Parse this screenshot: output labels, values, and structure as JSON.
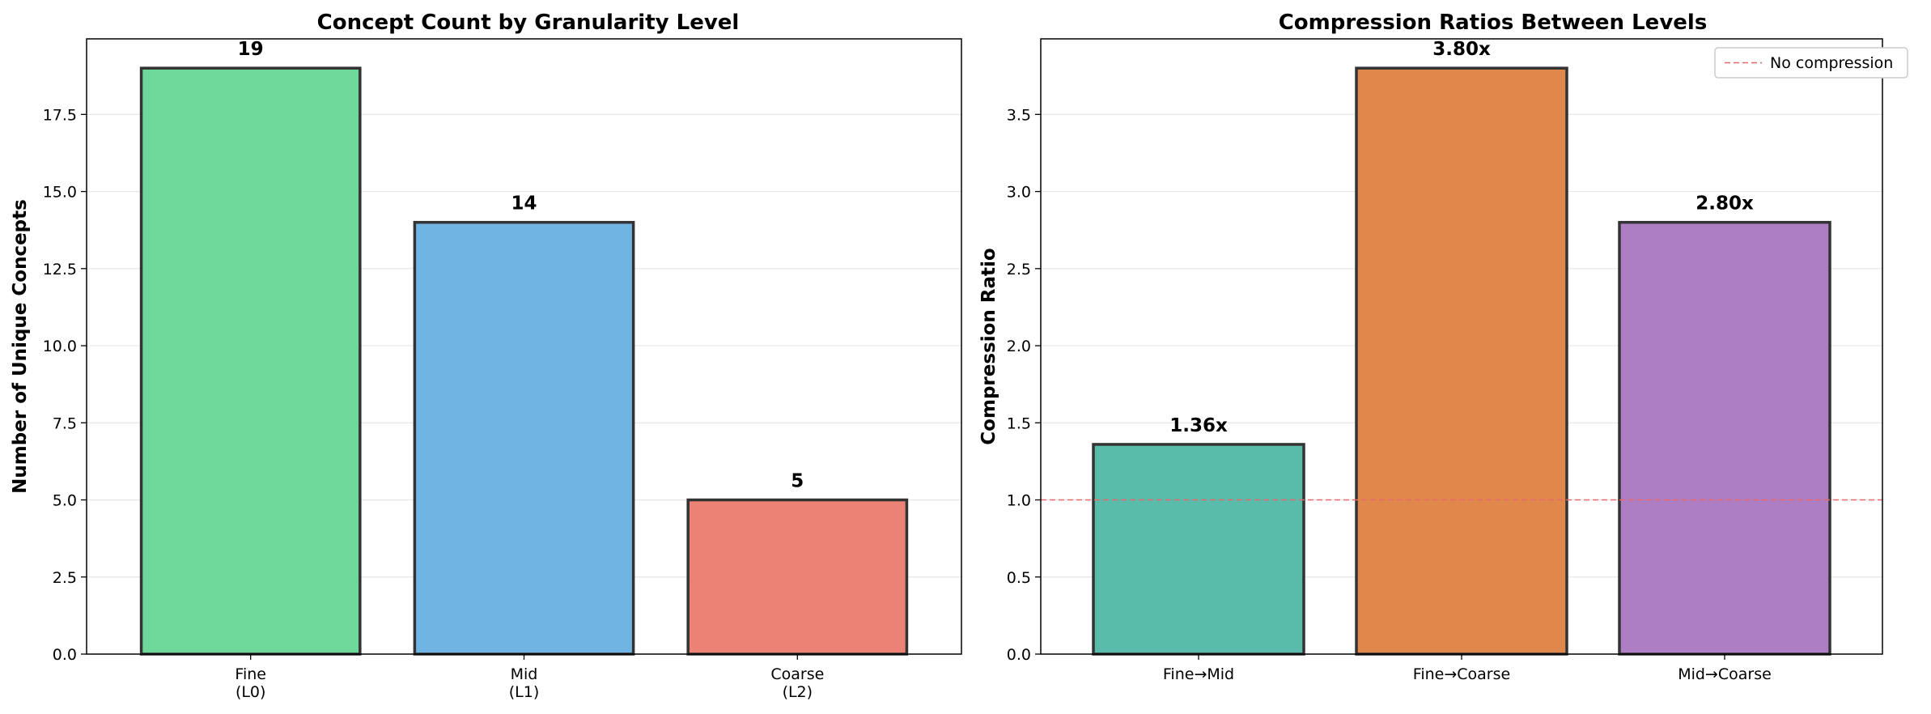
{
  "chart_data": [
    {
      "type": "bar",
      "title": "Concept Count by Granularity Level",
      "xlabel": "",
      "ylabel": "Number of Unique Concepts",
      "categories": [
        "Fine\n(L0)",
        "Mid\n(L1)",
        "Coarse\n(L2)"
      ],
      "values": [
        19,
        14,
        5
      ],
      "value_labels": [
        "19",
        "14",
        "5"
      ],
      "colors": [
        "#6dd899",
        "#70b4e4",
        "#ec8276"
      ],
      "ylim": [
        0,
        19.95
      ],
      "yticks": [
        "0.0",
        "2.5",
        "5.0",
        "7.5",
        "10.0",
        "12.5",
        "15.0",
        "17.5"
      ],
      "ytick_values": [
        0,
        2.5,
        5,
        7.5,
        10,
        12.5,
        15,
        17.5
      ],
      "grid": "horizontal",
      "legend": null
    },
    {
      "type": "bar",
      "title": "Compression Ratios Between Levels",
      "xlabel": "",
      "ylabel": "Compression Ratio",
      "categories": [
        "Fine→Mid",
        "Fine→Coarse",
        "Mid→Coarse"
      ],
      "values": [
        1.36,
        3.8,
        2.8
      ],
      "value_labels": [
        "1.36x",
        "3.80x",
        "2.80x"
      ],
      "colors": [
        "#59bba9",
        "#e0874c",
        "#ae7ec4"
      ],
      "ylim": [
        0,
        3.99
      ],
      "yticks": [
        "0.0",
        "0.5",
        "1.0",
        "1.5",
        "2.0",
        "2.5",
        "3.0",
        "3.5"
      ],
      "ytick_values": [
        0,
        0.5,
        1.0,
        1.5,
        2.0,
        2.5,
        3.0,
        3.5
      ],
      "grid": "horizontal",
      "reference_line": {
        "y": 1.0,
        "label": "No compression",
        "color": "#e8696b",
        "style": "dashed"
      },
      "legend": "top-right"
    }
  ]
}
